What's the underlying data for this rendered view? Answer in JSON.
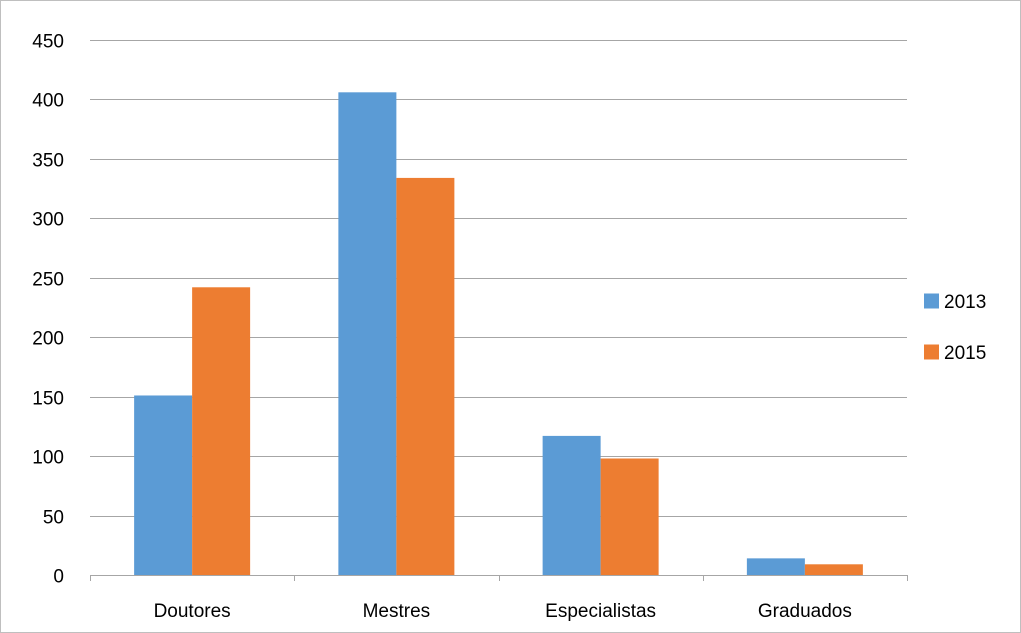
{
  "chart_data": {
    "type": "bar",
    "title": "",
    "xlabel": "",
    "ylabel": "",
    "categories": [
      "Doutores",
      "Mestres",
      "Especialistas",
      "Graduados"
    ],
    "series": [
      {
        "name": "2013",
        "color": "#5B9BD5",
        "values": [
          151,
          406,
          117,
          14
        ]
      },
      {
        "name": "2015",
        "color": "#ED7D31",
        "values": [
          242,
          334,
          98,
          9
        ]
      }
    ],
    "ylim": [
      0,
      450
    ],
    "yticks": [
      0,
      50,
      100,
      150,
      200,
      250,
      300,
      350,
      400,
      450
    ],
    "grid": true,
    "gridline_color": "#a6a6a6",
    "legend_position": "right"
  }
}
